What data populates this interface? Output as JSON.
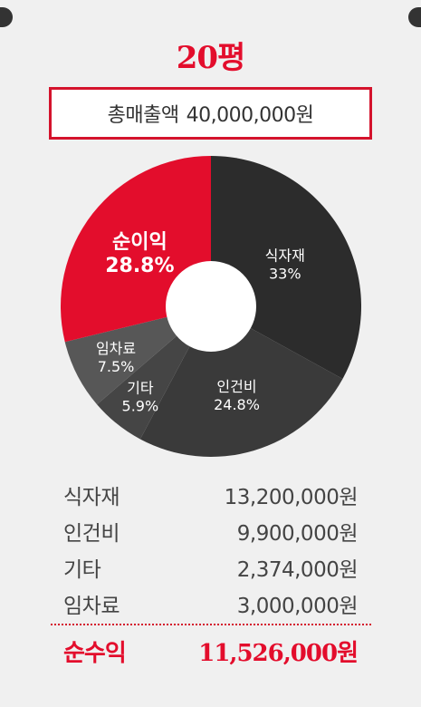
{
  "header": {
    "title": "20평"
  },
  "total": {
    "label": "총매출액",
    "value": "40,000,000원"
  },
  "colors": {
    "accent": "#e30d2c"
  },
  "chart_data": {
    "type": "pie",
    "donut": true,
    "slices": [
      {
        "label": "식자재",
        "value_label": "33%",
        "value": 33,
        "color": "#2c2c2c"
      },
      {
        "label": "인건비",
        "value_label": "24.8%",
        "value": 24.8,
        "color": "#3a3a3a"
      },
      {
        "label": "기타",
        "value_label": "5.9%",
        "value": 5.9,
        "color": "#454545"
      },
      {
        "label": "임차료",
        "value_label": "7.5%",
        "value": 7.5,
        "color": "#575757"
      },
      {
        "label": "순이익",
        "value_label": "28.8%",
        "value": 28.8,
        "color": "#e30d2c"
      }
    ]
  },
  "breakdown": [
    {
      "label": "식자재",
      "amount": "13,200,000원"
    },
    {
      "label": "인건비",
      "amount": "9,900,000원"
    },
    {
      "label": "기타",
      "amount": "2,374,000원"
    },
    {
      "label": "임차료",
      "amount": "3,000,000원"
    }
  ],
  "net_profit": {
    "label": "순수익",
    "amount": "11,526,000원"
  }
}
